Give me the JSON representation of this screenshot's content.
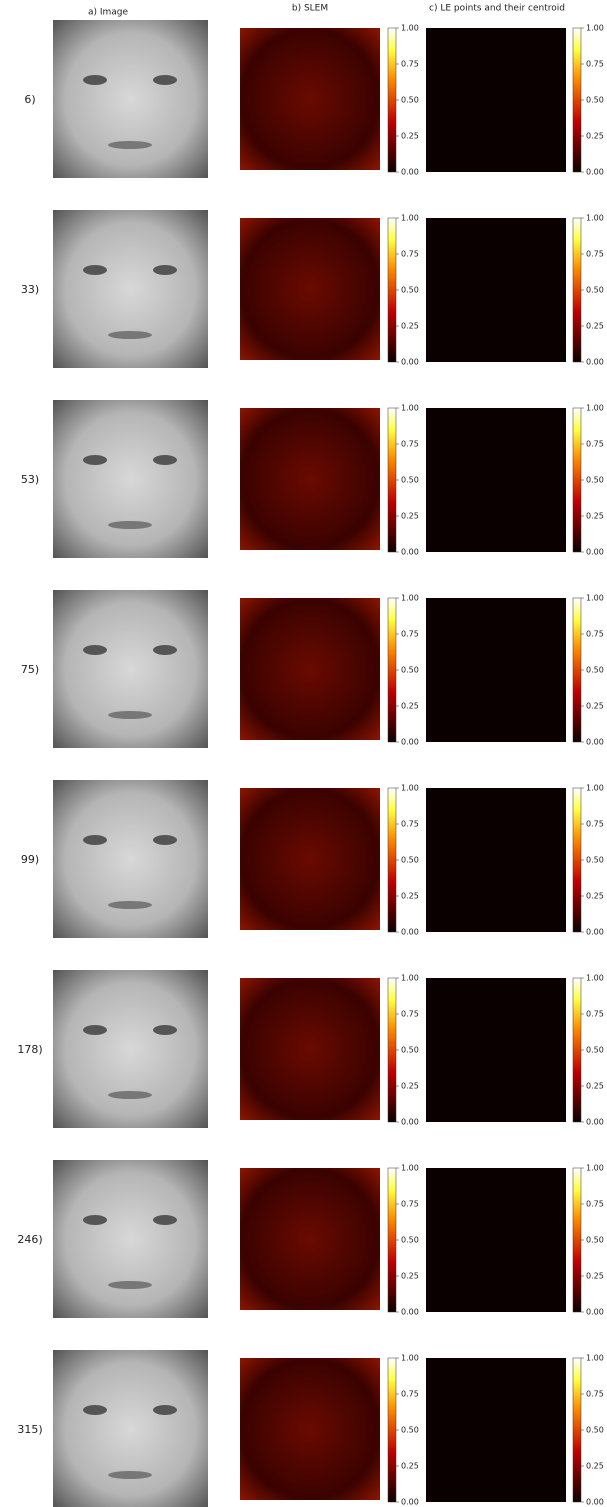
{
  "headers": [
    "a) Image",
    "b) SLEM",
    "c) LE points and their centroid"
  ],
  "rows": [
    {
      "label": "6)"
    },
    {
      "label": "33)"
    },
    {
      "label": "53)"
    },
    {
      "label": "75)"
    },
    {
      "label": "99)"
    },
    {
      "label": "178)"
    },
    {
      "label": "246)"
    },
    {
      "label": "315)"
    }
  ],
  "colorbar_ticks": [
    "1.00",
    "0.75",
    "0.50",
    "0.25",
    "0.00"
  ]
}
